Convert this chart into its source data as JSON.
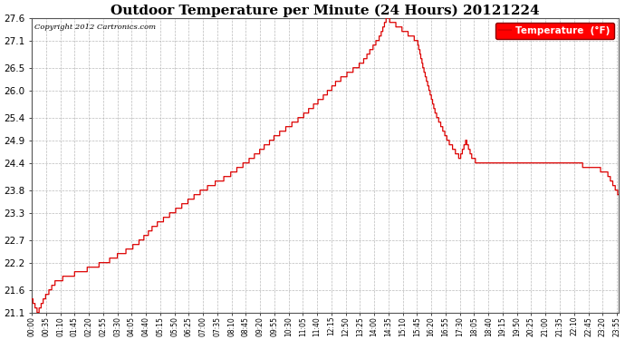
{
  "title": "Outdoor Temperature per Minute (24 Hours) 20121224",
  "copyright": "Copyright 2012 Cartronics.com",
  "legend_label": "Temperature  (°F)",
  "y_ticks": [
    21.1,
    21.6,
    22.2,
    22.7,
    23.3,
    23.8,
    24.4,
    24.9,
    25.4,
    26.0,
    26.5,
    27.1,
    27.6
  ],
  "ylim": [
    21.1,
    27.6
  ],
  "line_color": "#dd0000",
  "background_color": "#ffffff",
  "plot_bg_color": "#ffffff",
  "grid_color": "#aaaaaa",
  "title_fontsize": 11,
  "x_tick_interval": 35,
  "total_minutes": 1440,
  "x_tick_labels": [
    "00:00",
    "00:35",
    "01:10",
    "01:45",
    "02:20",
    "02:55",
    "03:30",
    "04:05",
    "04:40",
    "05:15",
    "05:50",
    "06:25",
    "07:00",
    "07:35",
    "08:10",
    "08:45",
    "09:20",
    "09:55",
    "10:30",
    "11:05",
    "11:40",
    "12:15",
    "12:50",
    "13:25",
    "14:00",
    "14:35",
    "15:10",
    "15:45",
    "16:20",
    "16:55",
    "17:30",
    "18:05",
    "18:40",
    "19:15",
    "19:50",
    "20:25",
    "21:00",
    "21:35",
    "22:10",
    "22:45",
    "23:20",
    "23:55"
  ],
  "curve_keypoints": [
    [
      0,
      21.4
    ],
    [
      15,
      21.1
    ],
    [
      30,
      21.4
    ],
    [
      60,
      21.8
    ],
    [
      90,
      21.9
    ],
    [
      120,
      22.0
    ],
    [
      150,
      22.1
    ],
    [
      180,
      22.2
    ],
    [
      240,
      22.5
    ],
    [
      270,
      22.7
    ],
    [
      300,
      23.0
    ],
    [
      360,
      23.4
    ],
    [
      420,
      23.8
    ],
    [
      480,
      24.1
    ],
    [
      540,
      24.5
    ],
    [
      600,
      25.0
    ],
    [
      660,
      25.4
    ],
    [
      720,
      25.9
    ],
    [
      750,
      26.2
    ],
    [
      780,
      26.4
    ],
    [
      810,
      26.6
    ],
    [
      840,
      27.0
    ],
    [
      855,
      27.2
    ],
    [
      870,
      27.6
    ],
    [
      885,
      27.5
    ],
    [
      900,
      27.4
    ],
    [
      915,
      27.3
    ],
    [
      930,
      27.2
    ],
    [
      945,
      27.1
    ],
    [
      960,
      26.5
    ],
    [
      975,
      26.0
    ],
    [
      990,
      25.5
    ],
    [
      1005,
      25.2
    ],
    [
      1020,
      24.9
    ],
    [
      1035,
      24.7
    ],
    [
      1050,
      24.5
    ],
    [
      1065,
      24.9
    ],
    [
      1080,
      24.5
    ],
    [
      1095,
      24.4
    ],
    [
      1110,
      24.4
    ],
    [
      1125,
      24.4
    ],
    [
      1140,
      24.4
    ],
    [
      1155,
      24.4
    ],
    [
      1170,
      24.4
    ],
    [
      1200,
      24.4
    ],
    [
      1230,
      24.4
    ],
    [
      1260,
      24.4
    ],
    [
      1290,
      24.4
    ],
    [
      1320,
      24.4
    ],
    [
      1350,
      24.35
    ],
    [
      1380,
      24.3
    ],
    [
      1410,
      24.2
    ],
    [
      1439,
      23.7
    ]
  ]
}
